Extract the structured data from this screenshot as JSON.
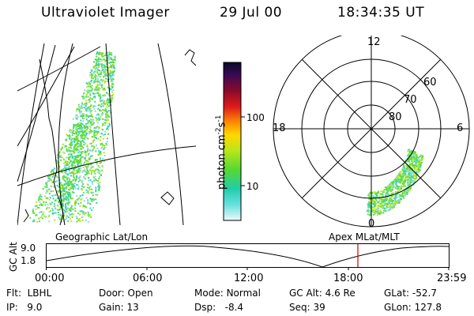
{
  "header": {
    "title": "Ultraviolet Imager",
    "date": "29 Jul 00",
    "time": "18:34:35 UT"
  },
  "colorbar": {
    "label_main": "photon cm",
    "label_exp1": "-2",
    "label_mid": "s",
    "label_exp2": "-1",
    "ticks": [
      "100",
      "10"
    ],
    "scale": "log"
  },
  "polar_plot": {
    "mlt_labels": {
      "top": "12",
      "left": "18",
      "right": "6",
      "bottom": "0"
    },
    "mlat_labels": [
      "60",
      "70",
      "80"
    ]
  },
  "panel_labels": {
    "left": "Geographic Lat/Lon",
    "right": "Apex MLat/MLT"
  },
  "altitude_plot": {
    "ylabel": "GC Alt",
    "yticks": [
      "9.0",
      "1.8"
    ],
    "xticks": [
      "00:00",
      "06:00",
      "12:00",
      "18:00",
      "23:59"
    ],
    "current_time": "18:34",
    "marker_color": "#cc0000"
  },
  "footer": {
    "col1": [
      {
        "label": "Flt:",
        "value": "LBHL"
      },
      {
        "label": "IP:",
        "value": "9.0"
      }
    ],
    "col2": [
      {
        "label": "Door:",
        "value": "Open"
      },
      {
        "label": "Gain:",
        "value": "13"
      }
    ],
    "col3": [
      {
        "label": "Mode:",
        "value": "Normal"
      },
      {
        "label": "Dsp:",
        "value": "-8.4"
      }
    ],
    "col4": [
      {
        "label": "GC Alt:",
        "value": "4.6 Re"
      },
      {
        "label": "Seq:",
        "value": "39"
      }
    ],
    "col5": [
      {
        "label": "GLat:",
        "value": "-52.7"
      },
      {
        "label": "GLon:",
        "value": "127.8"
      }
    ]
  },
  "colors": {
    "line": "#000000",
    "marker": "#cc0000",
    "aurora_low": "#33cccc",
    "aurora_mid": "#66dd33",
    "aurora_high": "#b8e61a"
  }
}
